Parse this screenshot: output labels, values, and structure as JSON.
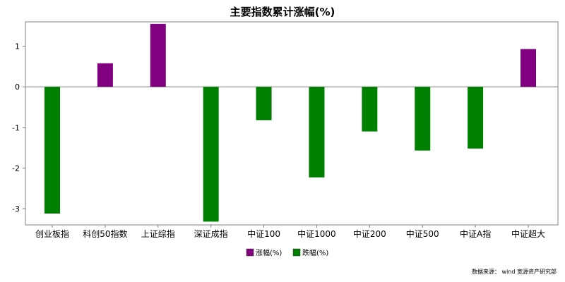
{
  "chart_data": {
    "type": "bar",
    "title": "主要指数累计涨幅(%)",
    "categories": [
      "创业板指",
      "科创50指数",
      "上证综指",
      "深证成指",
      "中证100",
      "中证1000",
      "中证200",
      "中证500",
      "中证A指",
      "中证超大"
    ],
    "values": [
      -3.12,
      0.58,
      1.55,
      -3.32,
      -0.82,
      -2.23,
      -1.1,
      -1.57,
      -1.52,
      0.93
    ],
    "ylim": [
      -3.4,
      1.6
    ],
    "yticks": [
      -3,
      -2,
      -1,
      0,
      1
    ],
    "ytick_labels": [
      "-3",
      "-2",
      "-1",
      "0",
      "1"
    ],
    "xlabel": "",
    "ylabel": "",
    "grid": false,
    "legend_position": "bottom-center",
    "legend": [
      {
        "label": "涨幅(%)",
        "color": "#800080"
      },
      {
        "label": "跌幅(%)",
        "color": "#008000"
      }
    ],
    "colors": {
      "up": "#800080",
      "down": "#008000",
      "axis": "#808080"
    }
  },
  "footer": {
    "source": "数据来源： wind 宽源资产研究部"
  }
}
